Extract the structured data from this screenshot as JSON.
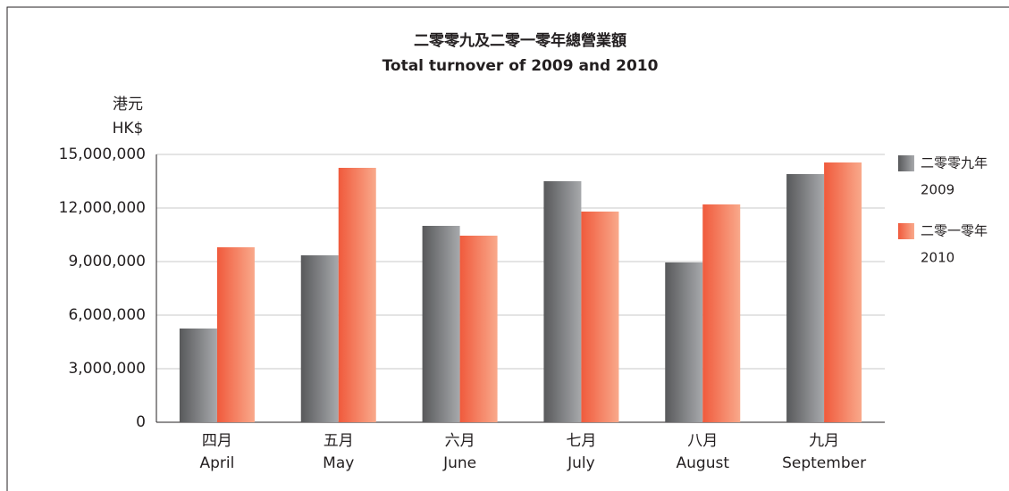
{
  "chart_data": {
    "type": "bar",
    "title": "二零零九及二零一零年總營業額",
    "subtitle": "Total turnover of 2009 and 2010",
    "ylabel": [
      "港元",
      "HK$"
    ],
    "categories": [
      [
        "四月",
        "April"
      ],
      [
        "五月",
        "May"
      ],
      [
        "六月",
        "June"
      ],
      [
        "七月",
        "July"
      ],
      [
        "八月",
        "August"
      ],
      [
        "九月",
        "September"
      ]
    ],
    "series": [
      {
        "name": "二零零九年",
        "name_en": "2009",
        "color": [
          "#58595b",
          "#a7a9ac"
        ],
        "values": [
          5250000,
          9350000,
          11000000,
          13500000,
          8950000,
          13900000
        ]
      },
      {
        "name": "二零一零年",
        "name_en": "2010",
        "color": [
          "#f05a3c",
          "#f9a98b"
        ],
        "values": [
          9800000,
          14250000,
          10450000,
          11800000,
          12200000,
          14550000
        ]
      }
    ],
    "ylim": [
      0,
      15000000
    ],
    "yticks": [
      0,
      {
        "value": 3000000,
        "label": "3,000,000"
      },
      {
        "value": 6000000,
        "label": "6,000,000"
      },
      {
        "value": 9000000,
        "label": "9,000,000"
      },
      {
        "value": 12000000,
        "label": "12,000,000"
      },
      {
        "value": 15000000,
        "label": "15,000,000"
      }
    ],
    "grid": true,
    "legend": "right"
  }
}
